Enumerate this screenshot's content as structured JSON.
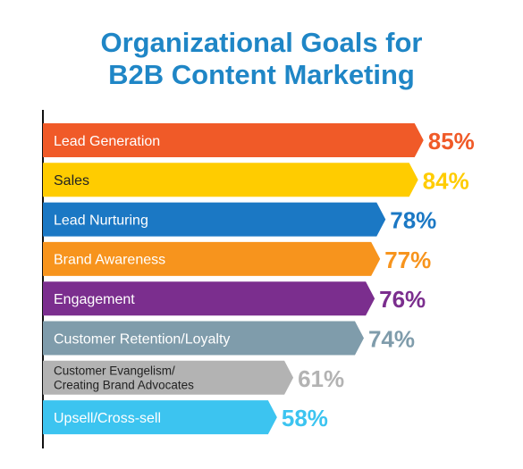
{
  "chart_data": {
    "type": "bar",
    "orientation": "horizontal",
    "title_lines": [
      "Organizational Goals for",
      "B2B Content Marketing"
    ],
    "categories": [
      [
        "Lead Generation"
      ],
      [
        "Sales"
      ],
      [
        "Lead Nurturing"
      ],
      [
        "Brand Awareness"
      ],
      [
        "Engagement"
      ],
      [
        "Customer Retention/Loyalty"
      ],
      [
        "Customer Evangelism/",
        "Creating Brand Advocates"
      ],
      [
        "Upsell/Cross-sell"
      ]
    ],
    "values": [
      85,
      84,
      78,
      77,
      76,
      74,
      61,
      58
    ],
    "value_labels": [
      "85%",
      "84%",
      "78%",
      "77%",
      "76%",
      "74%",
      "61%",
      "58%"
    ],
    "colors": [
      "#f05a28",
      "#ffcc00",
      "#1b78c4",
      "#f7941d",
      "#7b2e8e",
      "#7f9cab",
      "#b3b3b3",
      "#3cc4f0"
    ],
    "xlim": [
      0,
      100
    ],
    "grid": false,
    "legend": "none"
  }
}
